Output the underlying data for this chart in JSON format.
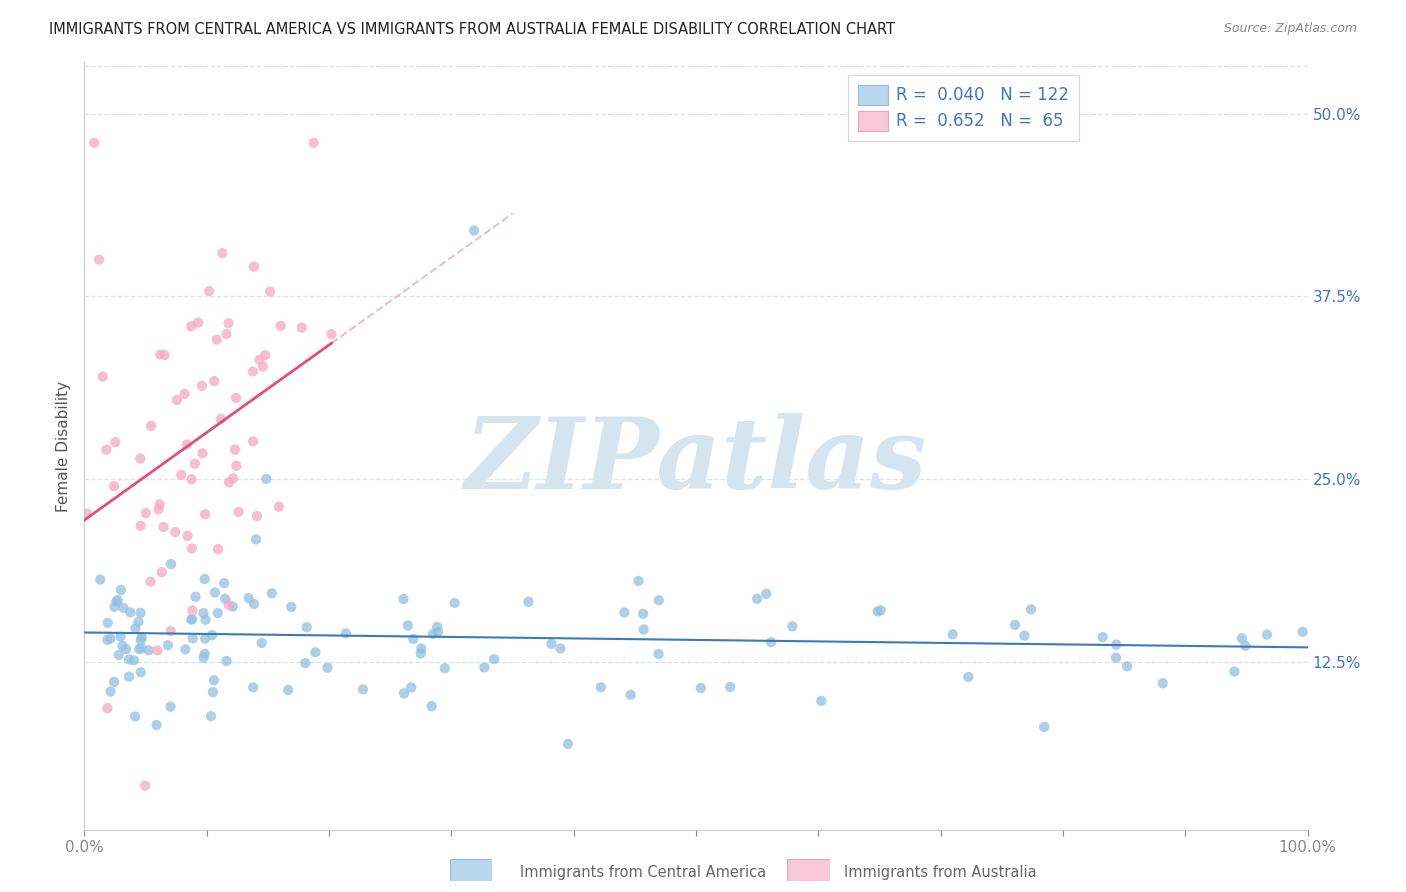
{
  "title": "IMMIGRANTS FROM CENTRAL AMERICA VS IMMIGRANTS FROM AUSTRALIA FEMALE DISABILITY CORRELATION CHART",
  "source": "Source: ZipAtlas.com",
  "ylabel": "Female Disability",
  "y_ticks": [
    0.125,
    0.25,
    0.375,
    0.5
  ],
  "y_tick_labels": [
    "12.5%",
    "25.0%",
    "37.5%",
    "50.0%"
  ],
  "x_min": 0.0,
  "x_max": 1.0,
  "y_min": 0.01,
  "y_max": 0.535,
  "blue_color": "#92c0e0",
  "pink_color": "#f4a8c0",
  "line_blue": "#3a7abf",
  "line_pink": "#e0507a",
  "line_pink_dash": "#e8a0b8",
  "watermark_color": "#d5e5f0",
  "label_color": "#4472c4",
  "bottom_label_color": "#666666",
  "title_color": "#222222",
  "source_color": "#888888",
  "grid_color": "#d8e4ec",
  "spine_color": "#cccccc",
  "tick_color": "#888888"
}
